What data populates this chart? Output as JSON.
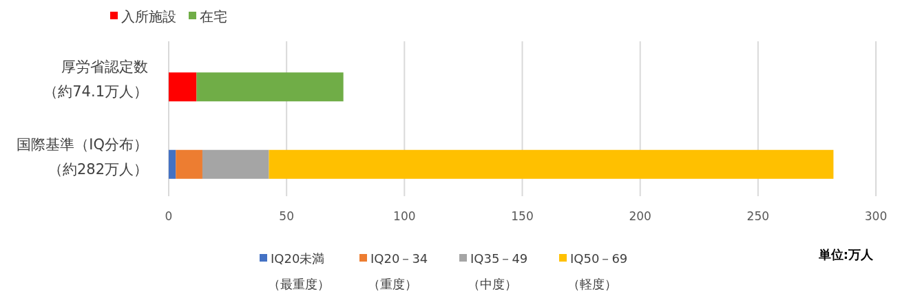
{
  "chart_data": {
    "type": "bar",
    "orientation": "horizontal",
    "stacked": true,
    "categories": [
      "厚労省認定数（約74.1万人）",
      "国際基準（IQ分布）（約282万人）"
    ],
    "series": [
      {
        "name": "入所施設",
        "color": "#ff0000",
        "values": [
          11.8,
          null
        ]
      },
      {
        "name": "在宅",
        "color": "#70ad47",
        "values": [
          62.3,
          null
        ]
      },
      {
        "name": "IQ20未満（最重度）",
        "color": "#4472c4",
        "values": [
          null,
          3.0
        ]
      },
      {
        "name": "IQ20－34（重度）",
        "color": "#ed7d31",
        "values": [
          null,
          11.3
        ]
      },
      {
        "name": "IQ35－49（中度）",
        "color": "#a5a5a5",
        "values": [
          null,
          28.2
        ]
      },
      {
        "name": "IQ50－69（軽度）",
        "color": "#ffc000",
        "values": [
          null,
          239.5
        ]
      }
    ],
    "xlim": [
      0,
      300
    ],
    "xticks": [
      0,
      50,
      100,
      150,
      200,
      250,
      300
    ],
    "grid": "x",
    "legend": "bottom left",
    "annotations": [
      "単位:万人"
    ]
  }
}
